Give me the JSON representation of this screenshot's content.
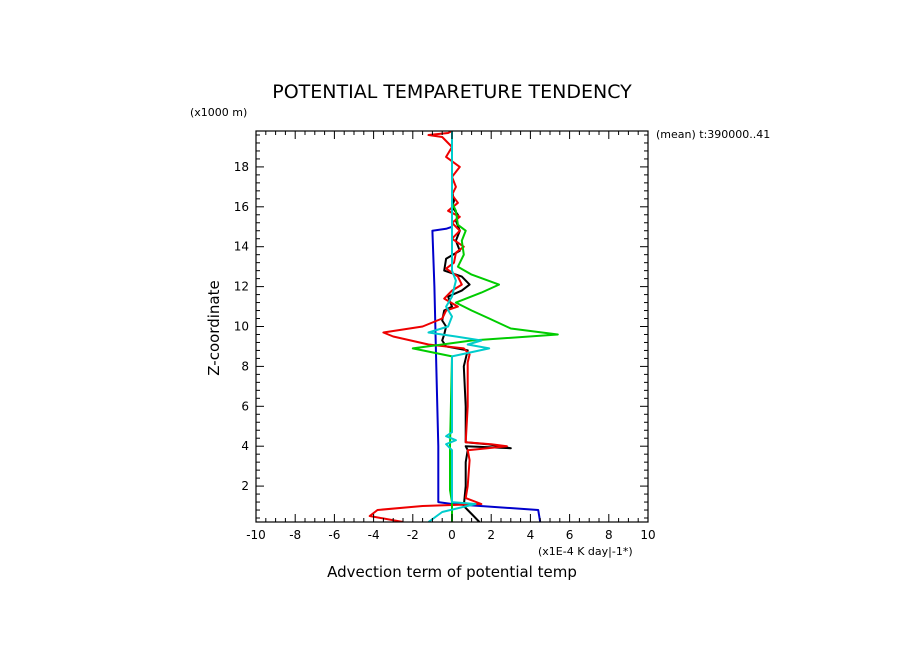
{
  "chart_data": {
    "type": "line",
    "title": "POTENTIAL TEMPARETURE TENDENCY",
    "y_unit": "(x1000 m)",
    "x_unit": "(x1E-4 K day|-1*)",
    "xlabel": "Advection term of potential temp",
    "ylabel": "Z-coordinate",
    "annotation": "(mean) t:390000..41",
    "xlim": [
      -10,
      10
    ],
    "ylim": [
      0.2,
      19.8
    ],
    "x_ticks": [
      -10,
      -8,
      -6,
      -4,
      -2,
      0,
      2,
      4,
      6,
      8,
      10
    ],
    "y_ticks": [
      2,
      4,
      6,
      8,
      10,
      12,
      14,
      16,
      18
    ],
    "x_tick_labels": [
      "-10",
      "-8",
      "-6",
      "-4",
      "-2",
      "0",
      "2",
      "4",
      "6",
      "8",
      "10"
    ],
    "y_tick_labels": [
      "2",
      "4",
      "6",
      "8",
      "10",
      "12",
      "14",
      "16",
      "18"
    ],
    "series": [
      {
        "color": "#0000cc",
        "points": [
          [
            4.5,
            0.2
          ],
          [
            4.4,
            0.8
          ],
          [
            0.0,
            1.1
          ],
          [
            -0.7,
            1.2
          ],
          [
            -0.7,
            4
          ],
          [
            -0.8,
            8
          ],
          [
            -0.9,
            12
          ],
          [
            -1.0,
            14.8
          ],
          [
            -0.3,
            14.9
          ],
          [
            0.0,
            15.0
          ]
        ]
      },
      {
        "color": "#000000",
        "points": [
          [
            1.4,
            0.2
          ],
          [
            1.1,
            0.5
          ],
          [
            0.8,
            0.8
          ],
          [
            0.6,
            1.0
          ],
          [
            0.7,
            2
          ],
          [
            0.7,
            3.2
          ],
          [
            0.8,
            3.8
          ],
          [
            0.7,
            4.0
          ],
          [
            3.0,
            3.9
          ],
          [
            1.8,
            4.1
          ],
          [
            0.7,
            4.2
          ],
          [
            0.7,
            6
          ],
          [
            0.6,
            8
          ],
          [
            0.8,
            8.8
          ],
          [
            -0.3,
            9.0
          ],
          [
            -0.5,
            9.3
          ],
          [
            -0.4,
            9.6
          ],
          [
            -0.3,
            10.0
          ],
          [
            -0.5,
            10.3
          ],
          [
            -0.4,
            10.8
          ],
          [
            0.0,
            11.0
          ],
          [
            -0.2,
            11.5
          ],
          [
            0.5,
            11.8
          ],
          [
            0.9,
            12.1
          ],
          [
            0.5,
            12.5
          ],
          [
            -0.4,
            12.8
          ],
          [
            -0.3,
            13.4
          ],
          [
            0.4,
            13.8
          ],
          [
            0.2,
            14.3
          ],
          [
            0.4,
            14.8
          ],
          [
            0.2,
            15.3
          ],
          [
            0.3,
            15.6
          ],
          [
            0.0,
            16.0
          ],
          [
            0.1,
            16.3
          ],
          [
            0.0,
            16.8
          ],
          [
            0.0,
            19.8
          ]
        ]
      },
      {
        "color": "#ee0000",
        "points": [
          [
            -2.5,
            0.2
          ],
          [
            -4.2,
            0.5
          ],
          [
            -3.8,
            0.8
          ],
          [
            -1.5,
            1.0
          ],
          [
            1.5,
            1.1
          ],
          [
            0.7,
            1.4
          ],
          [
            0.8,
            2
          ],
          [
            0.9,
            3.3
          ],
          [
            0.8,
            3.8
          ],
          [
            2.8,
            4.0
          ],
          [
            2.0,
            4.1
          ],
          [
            0.7,
            4.2
          ],
          [
            0.8,
            6
          ],
          [
            0.8,
            8.2
          ],
          [
            0.9,
            8.6
          ],
          [
            0.6,
            8.9
          ],
          [
            -1.2,
            9.1
          ],
          [
            -3.0,
            9.5
          ],
          [
            -3.5,
            9.7
          ],
          [
            -1.5,
            10.0
          ],
          [
            -0.5,
            10.4
          ],
          [
            -0.3,
            10.8
          ],
          [
            0.3,
            11.0
          ],
          [
            -0.4,
            11.4
          ],
          [
            0.0,
            11.8
          ],
          [
            0.5,
            12.1
          ],
          [
            0.3,
            12.5
          ],
          [
            -0.3,
            12.9
          ],
          [
            0.1,
            13.2
          ],
          [
            0.2,
            13.7
          ],
          [
            0.6,
            14.0
          ],
          [
            0.0,
            14.4
          ],
          [
            0.4,
            14.8
          ],
          [
            0.0,
            15.2
          ],
          [
            0.4,
            15.5
          ],
          [
            -0.2,
            15.8
          ],
          [
            0.3,
            16.2
          ],
          [
            0.0,
            16.6
          ],
          [
            0.2,
            17.0
          ],
          [
            0.0,
            17.5
          ],
          [
            0.4,
            18.0
          ],
          [
            -0.3,
            18.5
          ],
          [
            0.0,
            19.0
          ],
          [
            -0.5,
            19.5
          ],
          [
            -1.2,
            19.6
          ],
          [
            -0.2,
            19.7
          ],
          [
            0.0,
            19.8
          ]
        ]
      },
      {
        "color": "#00cc00",
        "points": [
          [
            0.0,
            0.2
          ],
          [
            0.0,
            1.2
          ],
          [
            -0.1,
            1.8
          ],
          [
            -0.1,
            4
          ],
          [
            0.0,
            8.5
          ],
          [
            -2.0,
            8.9
          ],
          [
            -0.5,
            9.1
          ],
          [
            1.0,
            9.3
          ],
          [
            5.4,
            9.6
          ],
          [
            3.0,
            9.9
          ],
          [
            1.9,
            10.4
          ],
          [
            1.0,
            10.8
          ],
          [
            0.2,
            11.2
          ],
          [
            1.5,
            11.7
          ],
          [
            2.4,
            12.1
          ],
          [
            1.0,
            12.6
          ],
          [
            0.3,
            13.0
          ],
          [
            0.6,
            13.6
          ],
          [
            0.5,
            14.3
          ],
          [
            0.7,
            14.8
          ],
          [
            0.3,
            15.1
          ],
          [
            0.2,
            15.8
          ],
          [
            0.0,
            16.2
          ],
          [
            0.0,
            19.8
          ]
        ]
      },
      {
        "color": "#00cccc",
        "points": [
          [
            -1.2,
            0.2
          ],
          [
            -0.5,
            0.7
          ],
          [
            1.2,
            1.1
          ],
          [
            0.0,
            1.2
          ],
          [
            0.0,
            3.8
          ],
          [
            -0.3,
            4.1
          ],
          [
            0.2,
            4.3
          ],
          [
            -0.3,
            4.5
          ],
          [
            0.0,
            4.7
          ],
          [
            0.0,
            8.5
          ],
          [
            1.9,
            8.9
          ],
          [
            0.8,
            9.1
          ],
          [
            1.5,
            9.3
          ],
          [
            0.2,
            9.5
          ],
          [
            -1.2,
            9.7
          ],
          [
            -0.2,
            10.0
          ],
          [
            0.0,
            10.5
          ],
          [
            -0.3,
            11.0
          ],
          [
            0.0,
            11.5
          ],
          [
            0.2,
            12.3
          ],
          [
            0.0,
            12.8
          ],
          [
            0.0,
            19.8
          ]
        ]
      }
    ]
  }
}
